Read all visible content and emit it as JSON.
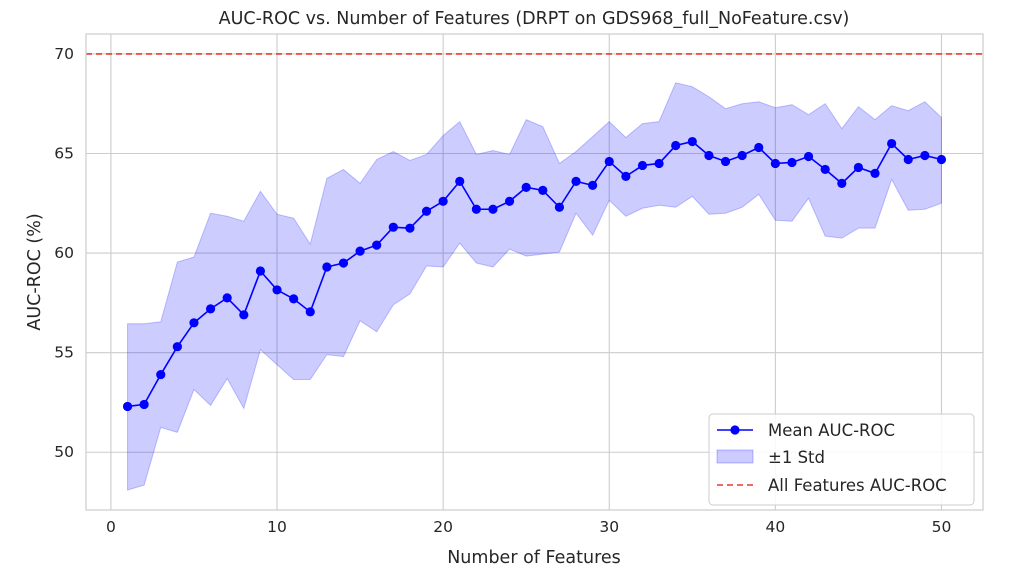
{
  "chart_data": {
    "type": "line",
    "title": "AUC-ROC vs. Number of Features (DRPT on GDS968_full_NoFeature.csv)",
    "xlabel": "Number of Features",
    "ylabel": "AUC-ROC (%)",
    "xlim": [
      -1.5,
      52.5
    ],
    "ylim": [
      47.1,
      71.0
    ],
    "xticks": [
      0,
      10,
      20,
      30,
      40,
      50
    ],
    "yticks": [
      50,
      55,
      60,
      65,
      70
    ],
    "grid": true,
    "legend_position": "lower-right",
    "x": [
      1,
      2,
      3,
      4,
      5,
      6,
      7,
      8,
      9,
      10,
      11,
      12,
      13,
      14,
      15,
      16,
      17,
      18,
      19,
      20,
      21,
      22,
      23,
      24,
      25,
      26,
      27,
      28,
      29,
      30,
      31,
      32,
      33,
      34,
      35,
      36,
      37,
      38,
      39,
      40,
      41,
      42,
      43,
      44,
      45,
      46,
      47,
      48,
      49,
      50
    ],
    "series": [
      {
        "name": "Mean AUC-ROC",
        "kind": "line-marker",
        "color": "#0000ff",
        "values": [
          52.3,
          52.4,
          53.9,
          55.3,
          56.5,
          57.2,
          57.75,
          56.9,
          59.1,
          58.15,
          57.7,
          57.05,
          59.3,
          59.5,
          60.1,
          60.4,
          61.3,
          61.25,
          62.1,
          62.6,
          63.6,
          62.2,
          62.2,
          62.6,
          63.3,
          63.15,
          62.3,
          63.6,
          63.4,
          64.6,
          63.85,
          64.4,
          64.5,
          65.4,
          65.6,
          64.9,
          64.6,
          64.9,
          65.3,
          64.5,
          64.55,
          64.85,
          64.2,
          63.5,
          64.3,
          64.0,
          65.5,
          64.7,
          64.9,
          64.7
        ]
      },
      {
        "name": "±1 Std",
        "kind": "band",
        "color": "#0000ff",
        "lower": [
          48.1,
          48.35,
          51.25,
          51.0,
          53.15,
          52.35,
          53.7,
          52.2,
          55.15,
          54.4,
          53.65,
          53.65,
          54.9,
          54.8,
          56.6,
          56.05,
          57.4,
          57.95,
          59.35,
          59.3,
          60.5,
          59.5,
          59.3,
          60.2,
          59.85,
          59.95,
          60.05,
          62.0,
          60.9,
          62.65,
          61.85,
          62.25,
          62.4,
          62.3,
          62.85,
          61.95,
          62.0,
          62.3,
          62.95,
          61.65,
          61.6,
          62.75,
          60.85,
          60.75,
          61.25,
          61.25,
          63.7,
          62.15,
          62.2,
          62.5
        ],
        "upper": [
          56.45,
          56.45,
          56.55,
          59.55,
          59.8,
          62.0,
          61.85,
          61.6,
          63.1,
          61.95,
          61.75,
          60.45,
          63.75,
          64.2,
          63.5,
          64.7,
          65.1,
          64.65,
          64.95,
          65.9,
          66.6,
          64.95,
          65.15,
          64.95,
          66.7,
          66.35,
          64.5,
          65.1,
          65.85,
          66.6,
          65.8,
          66.5,
          66.6,
          68.55,
          68.35,
          67.85,
          67.25,
          67.5,
          67.6,
          67.3,
          67.45,
          66.95,
          67.5,
          66.25,
          67.35,
          66.7,
          67.4,
          67.15,
          67.6,
          66.8
        ]
      },
      {
        "name": "All Features AUC-ROC",
        "kind": "hline",
        "color": "#e8392e",
        "y": 70.0
      }
    ]
  }
}
